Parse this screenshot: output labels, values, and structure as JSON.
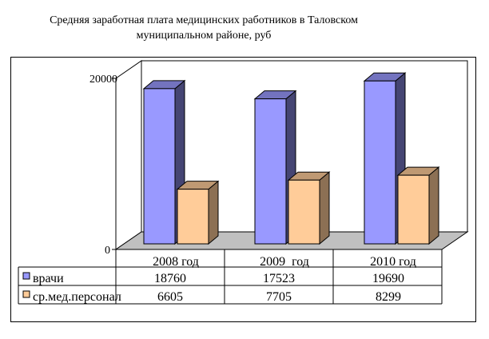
{
  "chart_data": {
    "type": "bar",
    "title": "Средняя заработная плата медицинских работников в Таловском муниципальном районе, руб",
    "categories": [
      "2008 год",
      "2009  год",
      "2010 год"
    ],
    "series": [
      {
        "name": "врачи",
        "values": [
          18760,
          17523,
          19690
        ],
        "color": "#9999FF"
      },
      {
        "name": "ср.мед.персонал",
        "values": [
          6605,
          7705,
          8299
        ],
        "color": "#FFCC99"
      }
    ],
    "value_labels": [
      [
        "18760",
        "17523",
        "19690"
      ],
      [
        "6605",
        "7705",
        "8299"
      ]
    ],
    "yticks": [
      "0",
      "20000"
    ],
    "ylim": [
      0,
      20000
    ],
    "legend": "data-table",
    "grid": false
  }
}
